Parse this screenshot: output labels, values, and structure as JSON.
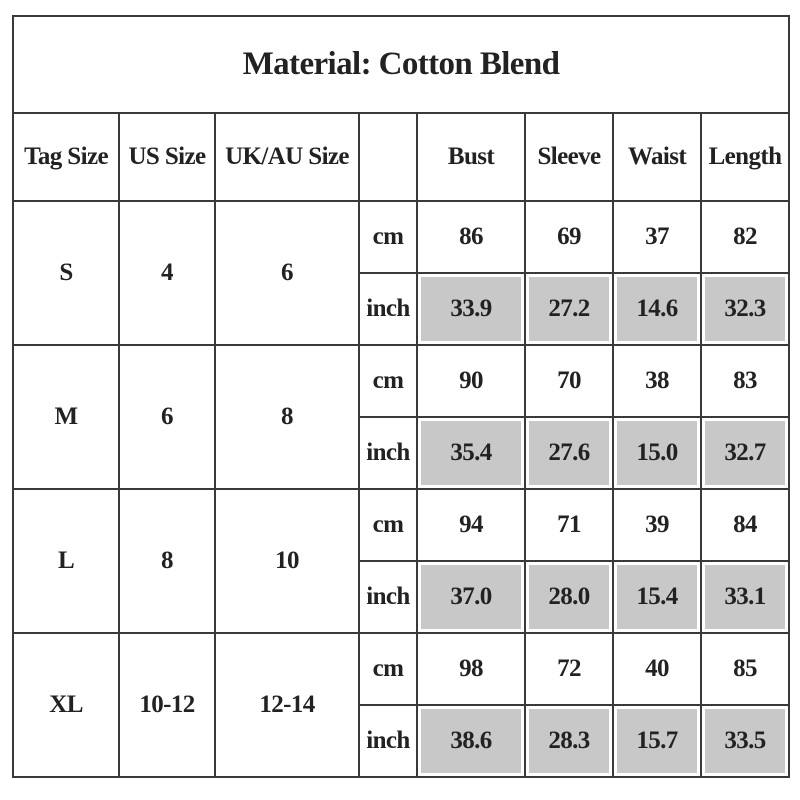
{
  "header": {
    "title": "Material: Cotton Blend"
  },
  "table": {
    "columns": [
      "Tag Size",
      "US Size",
      "UK/AU Size"
    ],
    "measures": [
      "Bust",
      "Sleeve",
      "Waist",
      "Length"
    ],
    "rows": [
      {
        "tag": "S",
        "us": "4",
        "uk": "6",
        "units": [
          {
            "unit": "cm",
            "values": [
              "86",
              "69",
              "37",
              "82"
            ]
          },
          {
            "unit": "inch",
            "values": [
              "33.9",
              "27.2",
              "14.6",
              "32.3"
            ]
          }
        ]
      },
      {
        "tag": "M",
        "us": "6",
        "uk": "8",
        "units": [
          {
            "unit": "cm",
            "values": [
              "90",
              "70",
              "38",
              "83"
            ]
          },
          {
            "unit": "inch",
            "values": [
              "35.4",
              "27.6",
              "15.0",
              "32.7"
            ]
          }
        ]
      },
      {
        "tag": "L",
        "us": "8",
        "uk": "10",
        "units": [
          {
            "unit": "cm",
            "values": [
              "94",
              "71",
              "39",
              "84"
            ]
          },
          {
            "unit": "inch",
            "values": [
              "37.0",
              "28.0",
              "15.4",
              "33.1"
            ]
          }
        ]
      },
      {
        "tag": "XL",
        "us": "10-12",
        "uk": "12-14",
        "units": [
          {
            "unit": "cm",
            "values": [
              "98",
              "72",
              "40",
              "85"
            ]
          },
          {
            "unit": "inch",
            "values": [
              "38.6",
              "28.3",
              "15.7",
              "33.5"
            ]
          }
        ]
      }
    ]
  }
}
